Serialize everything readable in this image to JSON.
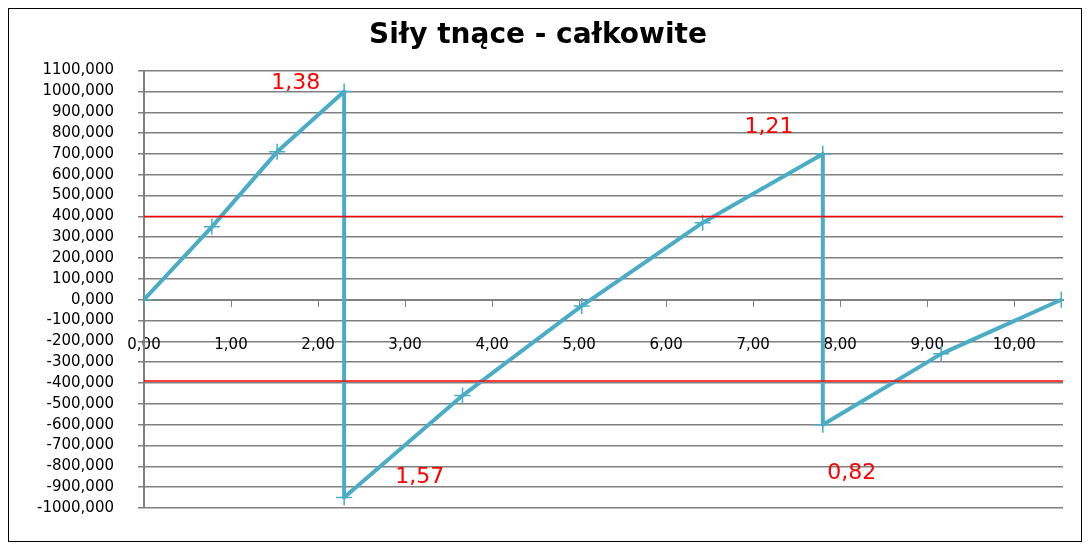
{
  "chart_data": {
    "type": "line",
    "title": "Siły tnące - całkowite",
    "x": [
      0,
      0.78,
      1.53,
      2.3,
      2.3,
      3.66,
      5.03,
      6.42,
      7.8,
      7.8,
      9.16,
      10.54
    ],
    "series": [
      {
        "color": "#4bacc6",
        "values": [
          0,
          350,
          710,
          1000,
          -950,
          -460,
          -30,
          370,
          700,
          -600,
          -260,
          0
        ]
      }
    ],
    "xlim": [
      0,
      10.56
    ],
    "xticks": [
      {
        "value": 0,
        "label": "0,00"
      },
      {
        "value": 1,
        "label": "1,00"
      },
      {
        "value": 2,
        "label": "2,00"
      },
      {
        "value": 3,
        "label": "3,00"
      },
      {
        "value": 4,
        "label": "4,00"
      },
      {
        "value": 5,
        "label": "5,00"
      },
      {
        "value": 6,
        "label": "6,00"
      },
      {
        "value": 7,
        "label": "7,00"
      },
      {
        "value": 8,
        "label": "8,00"
      },
      {
        "value": 9,
        "label": "9,00"
      },
      {
        "value": 10,
        "label": "10,00"
      }
    ],
    "ylim": [
      -1000,
      1100
    ],
    "yticks": [
      {
        "value": -1000,
        "label": "-1000,000"
      },
      {
        "value": -900,
        "label": "-900,000"
      },
      {
        "value": -800,
        "label": "-800,000"
      },
      {
        "value": -700,
        "label": "-700,000"
      },
      {
        "value": -600,
        "label": "-600,000"
      },
      {
        "value": -500,
        "label": "-500,000"
      },
      {
        "value": -400,
        "label": "-400,000"
      },
      {
        "value": -300,
        "label": "-300,000"
      },
      {
        "value": -200,
        "label": "-200,000"
      },
      {
        "value": -100,
        "label": "-100,000"
      },
      {
        "value": 0,
        "label": "0,000"
      },
      {
        "value": 100,
        "label": "100,000"
      },
      {
        "value": 200,
        "label": "200,000"
      },
      {
        "value": 300,
        "label": "300,000"
      },
      {
        "value": 400,
        "label": "400,000"
      },
      {
        "value": 500,
        "label": "500,000"
      },
      {
        "value": 600,
        "label": "600,000"
      },
      {
        "value": 700,
        "label": "700,000"
      },
      {
        "value": 800,
        "label": "800,000"
      },
      {
        "value": 900,
        "label": "900,000"
      },
      {
        "value": 1000,
        "label": "1000,000"
      },
      {
        "value": 1100,
        "label": "1100,000"
      }
    ],
    "grid": "y",
    "legend": false,
    "marker": "cross",
    "line_style": "solid",
    "ref_lines": [
      {
        "axis": "y",
        "value": 400,
        "color": "#ff0000"
      },
      {
        "axis": "y",
        "value": -390,
        "color": "#ff0000"
      }
    ],
    "annotations": [
      "1,38",
      "1,21",
      "1,57",
      "0,82"
    ]
  }
}
